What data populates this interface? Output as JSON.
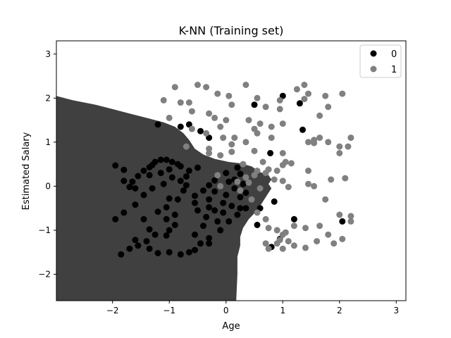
{
  "chart_data": {
    "type": "scatter",
    "title": "K-NN (Training set)",
    "xlabel": "Age",
    "ylabel": "Estimated Salary",
    "xlim": [
      -2.99,
      3.17
    ],
    "ylim": [
      -2.6,
      3.3
    ],
    "xticks": [
      -2,
      -1,
      0,
      1,
      2,
      3
    ],
    "yticks": [
      -2,
      -1,
      0,
      1,
      2,
      3
    ],
    "grid": false,
    "legend_position": "top-right",
    "region_colors": {
      "0": "#404040",
      "1": "#ffffff"
    },
    "decision_region_class0": [
      [
        -2.99,
        2.05
      ],
      [
        -2.7,
        1.95
      ],
      [
        -2.3,
        1.85
      ],
      [
        -2.0,
        1.75
      ],
      [
        -1.7,
        1.65
      ],
      [
        -1.4,
        1.55
      ],
      [
        -1.1,
        1.45
      ],
      [
        -0.9,
        1.35
      ],
      [
        -0.75,
        1.2
      ],
      [
        -0.65,
        1.05
      ],
      [
        -0.55,
        0.85
      ],
      [
        -0.4,
        0.72
      ],
      [
        -0.2,
        0.62
      ],
      [
        0.05,
        0.55
      ],
      [
        0.25,
        0.52
      ],
      [
        0.45,
        0.45
      ],
      [
        0.6,
        0.32
      ],
      [
        0.75,
        0.25
      ],
      [
        0.8,
        0.15
      ],
      [
        0.75,
        0.05
      ],
      [
        0.8,
        -0.05
      ],
      [
        0.75,
        -0.15
      ],
      [
        0.65,
        -0.35
      ],
      [
        0.55,
        -0.55
      ],
      [
        0.4,
        -0.75
      ],
      [
        0.3,
        -0.95
      ],
      [
        0.25,
        -1.15
      ],
      [
        0.25,
        -1.35
      ],
      [
        0.2,
        -1.6
      ],
      [
        0.2,
        -2.0
      ],
      [
        0.18,
        -2.6
      ],
      [
        -2.99,
        -2.6
      ]
    ],
    "legend": [
      "0",
      "1"
    ],
    "series": [
      {
        "name": "0",
        "color": "#000000",
        "points": [
          [
            -1.95,
            0.47
          ],
          [
            -1.8,
            0.37
          ],
          [
            -1.8,
            0.12
          ],
          [
            -1.65,
            0.1
          ],
          [
            -1.7,
            -0.02
          ],
          [
            -1.55,
            0.23
          ],
          [
            -1.45,
            0.35
          ],
          [
            -1.35,
            0.43
          ],
          [
            -1.3,
            0.48
          ],
          [
            -1.25,
            0.55
          ],
          [
            -1.15,
            0.6
          ],
          [
            -1.05,
            0.6
          ],
          [
            -0.95,
            0.55
          ],
          [
            -0.85,
            0.5
          ],
          [
            -1.0,
            0.38
          ],
          [
            -1.15,
            0.3
          ],
          [
            -1.35,
            0.25
          ],
          [
            -1.6,
            -0.05
          ],
          [
            -1.95,
            -0.75
          ],
          [
            -1.8,
            -0.6
          ],
          [
            -1.6,
            -0.42
          ],
          [
            -1.45,
            -0.2
          ],
          [
            -1.3,
            -0.05
          ],
          [
            -1.1,
            0.05
          ],
          [
            -0.95,
            0.2
          ],
          [
            -0.8,
            0.12
          ],
          [
            -0.7,
            0.22
          ],
          [
            -0.7,
            0.02
          ],
          [
            -0.75,
            -0.1
          ],
          [
            -1.0,
            -0.28
          ],
          [
            -1.05,
            -0.48
          ],
          [
            -1.2,
            -0.58
          ],
          [
            -1.05,
            -0.75
          ],
          [
            -0.9,
            -0.88
          ],
          [
            -1.0,
            -1.0
          ],
          [
            -1.05,
            -1.12
          ],
          [
            -1.25,
            -1.1
          ],
          [
            -1.35,
            -0.98
          ],
          [
            -1.4,
            -1.25
          ],
          [
            -1.55,
            -1.35
          ],
          [
            -1.7,
            -1.42
          ],
          [
            -1.85,
            -1.55
          ],
          [
            -1.6,
            -1.22
          ],
          [
            -1.35,
            -1.42
          ],
          [
            -1.2,
            -1.52
          ],
          [
            -1.0,
            -1.5
          ],
          [
            -0.8,
            -1.55
          ],
          [
            -0.65,
            -1.5
          ],
          [
            -0.55,
            -1.45
          ],
          [
            -0.45,
            -1.3
          ],
          [
            -0.55,
            -1.1
          ],
          [
            -0.4,
            -0.9
          ],
          [
            -0.35,
            -0.7
          ],
          [
            -0.5,
            -0.55
          ],
          [
            -0.55,
            -0.38
          ],
          [
            -0.55,
            -0.22
          ],
          [
            -0.4,
            -0.1
          ],
          [
            -0.3,
            0.02
          ],
          [
            -0.2,
            0.13
          ],
          [
            -0.2,
            -0.12
          ],
          [
            -0.3,
            -0.3
          ],
          [
            -0.3,
            -0.48
          ],
          [
            -0.2,
            -0.55
          ],
          [
            -0.15,
            -0.8
          ],
          [
            -0.1,
            -1.0
          ],
          [
            -0.3,
            -1.18
          ],
          [
            -0.3,
            -1.3
          ],
          [
            0.05,
            0.1
          ],
          [
            0.15,
            0.15
          ],
          [
            0.25,
            0.28
          ],
          [
            0.3,
            0.05
          ],
          [
            0.35,
            -0.15
          ],
          [
            0.25,
            -0.25
          ],
          [
            0.15,
            -0.05
          ],
          [
            0.0,
            -0.2
          ],
          [
            -0.05,
            -0.38
          ],
          [
            0.1,
            -0.45
          ],
          [
            0.25,
            -0.5
          ],
          [
            0.35,
            -0.5
          ],
          [
            -0.65,
            0.35
          ],
          [
            -0.8,
            0.45
          ],
          [
            -0.5,
            0.42
          ],
          [
            -0.85,
            -0.3
          ],
          [
            -0.9,
            -0.65
          ],
          [
            -1.45,
            -0.75
          ],
          [
            0.05,
            -0.8
          ],
          [
            0.2,
            -0.65
          ],
          [
            -0.05,
            -0.6
          ],
          [
            0.0,
            0.3
          ],
          [
            0.2,
            0.42
          ],
          [
            -0.8,
            1.35
          ],
          [
            -0.65,
            1.4
          ],
          [
            -0.45,
            1.25
          ],
          [
            -1.2,
            1.4
          ],
          [
            -0.3,
            1.1
          ],
          [
            0.5,
            1.85
          ],
          [
            1.0,
            2.05
          ],
          [
            1.3,
            1.88
          ],
          [
            1.35,
            1.28
          ],
          [
            0.6,
            -0.5
          ],
          [
            0.78,
            0.75
          ],
          [
            0.85,
            -0.35
          ],
          [
            0.95,
            -1.2
          ],
          [
            1.2,
            -0.75
          ],
          [
            0.8,
            -1.38
          ],
          [
            2.05,
            -0.8
          ],
          [
            0.55,
            -0.88
          ]
        ]
      },
      {
        "name": "1",
        "color": "#808080",
        "points": [
          [
            -1.1,
            1.95
          ],
          [
            -0.9,
            2.25
          ],
          [
            -0.8,
            1.9
          ],
          [
            -0.65,
            1.9
          ],
          [
            -0.5,
            2.3
          ],
          [
            -0.35,
            2.25
          ],
          [
            -0.15,
            2.1
          ],
          [
            0.05,
            2.05
          ],
          [
            0.1,
            1.85
          ],
          [
            0.35,
            2.3
          ],
          [
            0.55,
            2.0
          ],
          [
            0.7,
            1.8
          ],
          [
            0.95,
            1.95
          ],
          [
            0.95,
            1.75
          ],
          [
            1.25,
            2.2
          ],
          [
            1.38,
            2.3
          ],
          [
            1.45,
            2.1
          ],
          [
            1.38,
            1.98
          ],
          [
            1.75,
            2.05
          ],
          [
            1.65,
            1.6
          ],
          [
            1.8,
            1.8
          ],
          [
            2.05,
            2.1
          ],
          [
            -1.0,
            1.55
          ],
          [
            -0.6,
            1.7
          ],
          [
            -0.3,
            1.65
          ],
          [
            -0.2,
            1.55
          ],
          [
            0.0,
            1.5
          ],
          [
            -0.1,
            1.35
          ],
          [
            -0.6,
            1.3
          ],
          [
            -0.35,
            1.2
          ],
          [
            0.4,
            1.5
          ],
          [
            0.6,
            1.42
          ],
          [
            0.8,
            1.35
          ],
          [
            0.5,
            1.3
          ],
          [
            1.0,
            1.42
          ],
          [
            0.8,
            1.1
          ],
          [
            -0.7,
            0.9
          ],
          [
            -0.3,
            0.85
          ],
          [
            -0.05,
            1.1
          ],
          [
            0.1,
            0.95
          ],
          [
            0.15,
            1.1
          ],
          [
            0.35,
            1.0
          ],
          [
            0.55,
            1.2
          ],
          [
            1.45,
            1.0
          ],
          [
            1.55,
            1.05
          ],
          [
            1.65,
            1.1
          ],
          [
            1.55,
            0.98
          ],
          [
            1.8,
            1.0
          ],
          [
            2.0,
            0.9
          ],
          [
            2.2,
            1.1
          ],
          [
            2.0,
            0.75
          ],
          [
            2.15,
            0.9
          ],
          [
            -0.3,
            0.75
          ],
          [
            -0.1,
            0.7
          ],
          [
            0.1,
            0.78
          ],
          [
            0.5,
            0.8
          ],
          [
            1.0,
            0.75
          ],
          [
            1.05,
            0.55
          ],
          [
            1.15,
            0.52
          ],
          [
            1.45,
            0.35
          ],
          [
            1.85,
            0.15
          ],
          [
            2.1,
            0.18
          ],
          [
            1.45,
            0.05
          ],
          [
            1.55,
            0.0
          ],
          [
            0.3,
            0.5
          ],
          [
            0.55,
            0.35
          ],
          [
            0.7,
            0.3
          ],
          [
            0.85,
            0.15
          ],
          [
            1.0,
            0.12
          ],
          [
            1.1,
            -0.02
          ],
          [
            0.2,
            0.1
          ],
          [
            -0.15,
            0.25
          ],
          [
            0.4,
            0.08
          ],
          [
            0.6,
            -0.05
          ],
          [
            0.45,
            -0.3
          ],
          [
            0.55,
            -0.6
          ],
          [
            0.7,
            -0.75
          ],
          [
            0.75,
            -0.95
          ],
          [
            0.9,
            -1.0
          ],
          [
            1.0,
            -1.1
          ],
          [
            1.1,
            -1.25
          ],
          [
            1.2,
            -0.9
          ],
          [
            1.4,
            -0.95
          ],
          [
            1.65,
            -0.9
          ],
          [
            1.75,
            -0.3
          ],
          [
            2.0,
            -0.65
          ],
          [
            2.2,
            -0.68
          ],
          [
            2.2,
            -0.8
          ],
          [
            1.8,
            -1.1
          ],
          [
            1.9,
            -1.3
          ],
          [
            2.05,
            -1.2
          ],
          [
            1.6,
            -1.25
          ],
          [
            1.4,
            -1.4
          ],
          [
            1.2,
            -1.35
          ],
          [
            1.0,
            -1.42
          ],
          [
            0.9,
            -1.3
          ],
          [
            0.7,
            -1.3
          ],
          [
            0.75,
            -1.42
          ],
          [
            0.95,
            -1.22
          ],
          [
            1.05,
            -1.05
          ],
          [
            -0.1,
            0.0
          ],
          [
            0.25,
            -0.1
          ],
          [
            0.35,
            0.2
          ],
          [
            0.9,
            0.35
          ],
          [
            0.75,
            0.38
          ],
          [
            1.0,
            0.48
          ],
          [
            0.65,
            0.55
          ],
          [
            0.5,
            0.25
          ]
        ]
      }
    ]
  }
}
